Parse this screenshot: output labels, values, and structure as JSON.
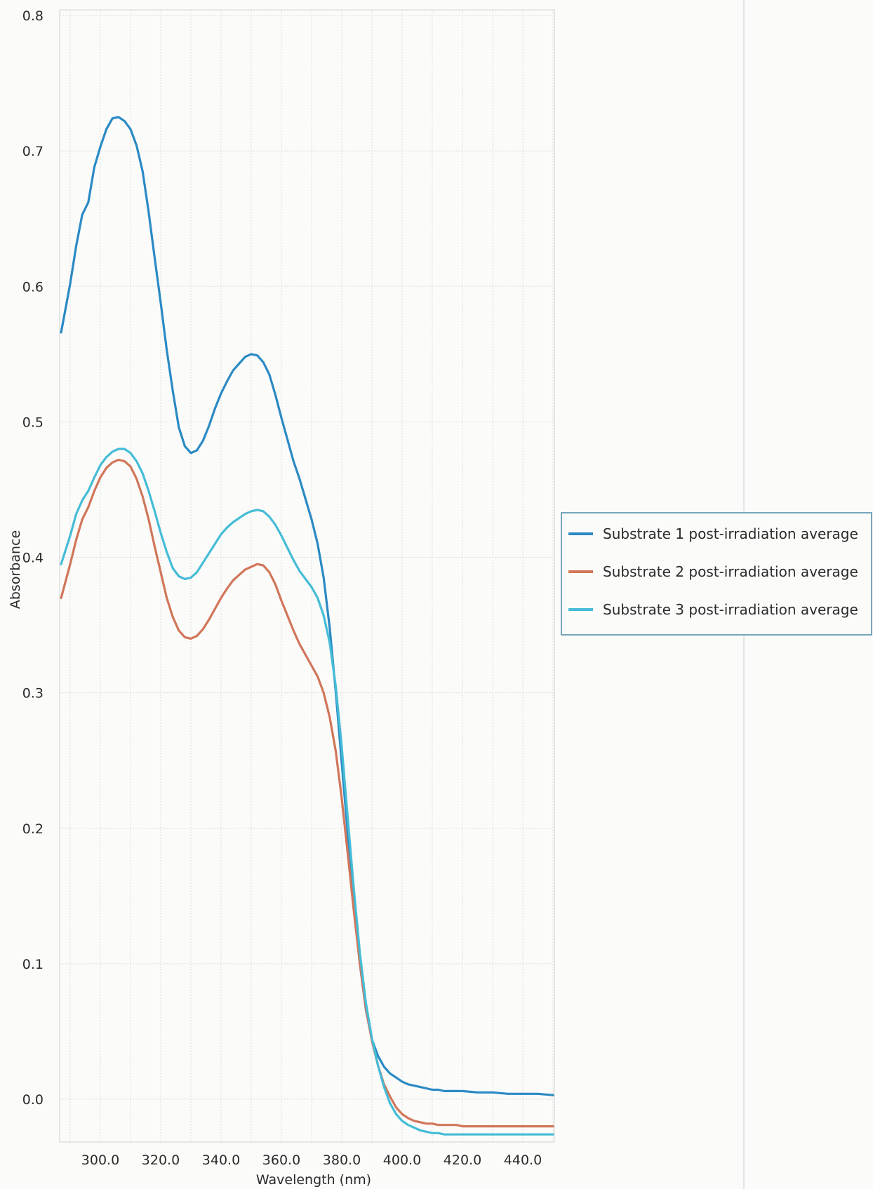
{
  "chart_data": {
    "type": "line",
    "xlabel": "Wavelength (nm)",
    "ylabel": "Absorbance",
    "xlim": [
      286,
      451
    ],
    "ylim": [
      -0.025,
      0.8
    ],
    "x_ticks": [
      {
        "value": 300,
        "label": "300.0"
      },
      {
        "value": 320,
        "label": "320.0"
      },
      {
        "value": 340,
        "label": "340.0"
      },
      {
        "value": 360,
        "label": "360.0"
      },
      {
        "value": 380,
        "label": "380.0"
      },
      {
        "value": 400,
        "label": "400.0"
      },
      {
        "value": 420,
        "label": "420.0"
      },
      {
        "value": 440,
        "label": "440.0"
      }
    ],
    "y_ticks": [
      {
        "value": 0.0,
        "label": "0.0"
      },
      {
        "value": 0.1,
        "label": "0.1"
      },
      {
        "value": 0.2,
        "label": "0.2"
      },
      {
        "value": 0.3,
        "label": "0.3"
      },
      {
        "value": 0.4,
        "label": "0.4"
      },
      {
        "value": 0.5,
        "label": "0.5"
      },
      {
        "value": 0.6,
        "label": "0.6"
      },
      {
        "value": 0.7,
        "label": "0.7"
      },
      {
        "value": 0.8,
        "label": "0.8"
      }
    ],
    "grid": true,
    "legend_position": "right",
    "series": [
      {
        "name": "Substrate 1 post-irradiation average",
        "color": "#2b8ac4",
        "x": [
          287,
          290,
          292,
          294,
          296,
          298,
          300,
          302,
          304,
          306,
          308,
          310,
          312,
          314,
          316,
          318,
          320,
          322,
          324,
          326,
          328,
          330,
          332,
          334,
          336,
          338,
          340,
          342,
          344,
          346,
          348,
          350,
          352,
          354,
          356,
          358,
          360,
          362,
          364,
          366,
          368,
          370,
          372,
          374,
          376,
          378,
          380,
          382,
          384,
          386,
          388,
          390,
          392,
          394,
          396,
          398,
          400,
          402,
          404,
          406,
          408,
          410,
          412,
          414,
          416,
          418,
          420,
          425,
          430,
          435,
          440,
          445,
          450
        ],
        "y": [
          0.566,
          0.602,
          0.63,
          0.653,
          0.662,
          0.688,
          0.703,
          0.716,
          0.724,
          0.725,
          0.722,
          0.716,
          0.704,
          0.685,
          0.655,
          0.621,
          0.588,
          0.553,
          0.523,
          0.496,
          0.482,
          0.477,
          0.479,
          0.486,
          0.497,
          0.51,
          0.521,
          0.53,
          0.538,
          0.543,
          0.548,
          0.55,
          0.549,
          0.544,
          0.535,
          0.52,
          0.503,
          0.487,
          0.471,
          0.458,
          0.443,
          0.428,
          0.41,
          0.385,
          0.348,
          0.301,
          0.248,
          0.196,
          0.144,
          0.1,
          0.066,
          0.044,
          0.032,
          0.024,
          0.019,
          0.016,
          0.013,
          0.011,
          0.01,
          0.009,
          0.008,
          0.007,
          0.007,
          0.006,
          0.006,
          0.006,
          0.006,
          0.005,
          0.005,
          0.004,
          0.004,
          0.004,
          0.003
        ]
      },
      {
        "name": "Substrate 2 post-irradiation average",
        "color": "#d1765a",
        "x": [
          287,
          290,
          292,
          294,
          296,
          298,
          300,
          302,
          304,
          306,
          308,
          310,
          312,
          314,
          316,
          318,
          320,
          322,
          324,
          326,
          328,
          330,
          332,
          334,
          336,
          338,
          340,
          342,
          344,
          346,
          348,
          350,
          352,
          354,
          356,
          358,
          360,
          362,
          364,
          366,
          368,
          370,
          372,
          374,
          376,
          378,
          380,
          382,
          384,
          386,
          388,
          390,
          392,
          394,
          396,
          398,
          400,
          402,
          404,
          406,
          408,
          410,
          412,
          414,
          416,
          418,
          420,
          425,
          430,
          435,
          440,
          445,
          450
        ],
        "y": [
          0.37,
          0.395,
          0.413,
          0.428,
          0.437,
          0.449,
          0.459,
          0.466,
          0.47,
          0.472,
          0.471,
          0.467,
          0.458,
          0.445,
          0.428,
          0.408,
          0.389,
          0.37,
          0.356,
          0.346,
          0.341,
          0.34,
          0.342,
          0.347,
          0.354,
          0.362,
          0.37,
          0.377,
          0.383,
          0.387,
          0.391,
          0.393,
          0.395,
          0.394,
          0.389,
          0.38,
          0.368,
          0.357,
          0.346,
          0.336,
          0.328,
          0.32,
          0.312,
          0.3,
          0.282,
          0.257,
          0.222,
          0.181,
          0.139,
          0.1,
          0.067,
          0.043,
          0.025,
          0.011,
          0.002,
          -0.006,
          -0.011,
          -0.014,
          -0.016,
          -0.017,
          -0.018,
          -0.018,
          -0.019,
          -0.019,
          -0.019,
          -0.019,
          -0.02,
          -0.02,
          -0.02,
          -0.02,
          -0.02,
          -0.02,
          -0.02
        ]
      },
      {
        "name": "Substrate 3 post-irradiation average",
        "color": "#45bcd6",
        "x": [
          287,
          290,
          292,
          294,
          296,
          298,
          300,
          302,
          304,
          306,
          308,
          310,
          312,
          314,
          316,
          318,
          320,
          322,
          324,
          326,
          328,
          330,
          332,
          334,
          336,
          338,
          340,
          342,
          344,
          346,
          348,
          350,
          352,
          354,
          356,
          358,
          360,
          362,
          364,
          366,
          368,
          370,
          372,
          374,
          376,
          378,
          380,
          382,
          384,
          386,
          388,
          390,
          392,
          394,
          396,
          398,
          400,
          402,
          404,
          406,
          408,
          410,
          412,
          414,
          416,
          418,
          420,
          425,
          430,
          435,
          440,
          445,
          450
        ],
        "y": [
          0.395,
          0.416,
          0.432,
          0.442,
          0.449,
          0.459,
          0.468,
          0.474,
          0.478,
          0.48,
          0.48,
          0.477,
          0.471,
          0.462,
          0.449,
          0.434,
          0.418,
          0.404,
          0.392,
          0.386,
          0.384,
          0.385,
          0.389,
          0.396,
          0.403,
          0.41,
          0.417,
          0.422,
          0.426,
          0.429,
          0.432,
          0.434,
          0.435,
          0.434,
          0.43,
          0.424,
          0.416,
          0.407,
          0.398,
          0.39,
          0.384,
          0.378,
          0.37,
          0.357,
          0.337,
          0.305,
          0.26,
          0.207,
          0.155,
          0.108,
          0.071,
          0.045,
          0.025,
          0.009,
          -0.003,
          -0.011,
          -0.016,
          -0.019,
          -0.021,
          -0.023,
          -0.024,
          -0.025,
          -0.025,
          -0.026,
          -0.026,
          -0.026,
          -0.026,
          -0.026,
          -0.026,
          -0.026,
          -0.026,
          -0.026,
          -0.026
        ]
      }
    ]
  }
}
